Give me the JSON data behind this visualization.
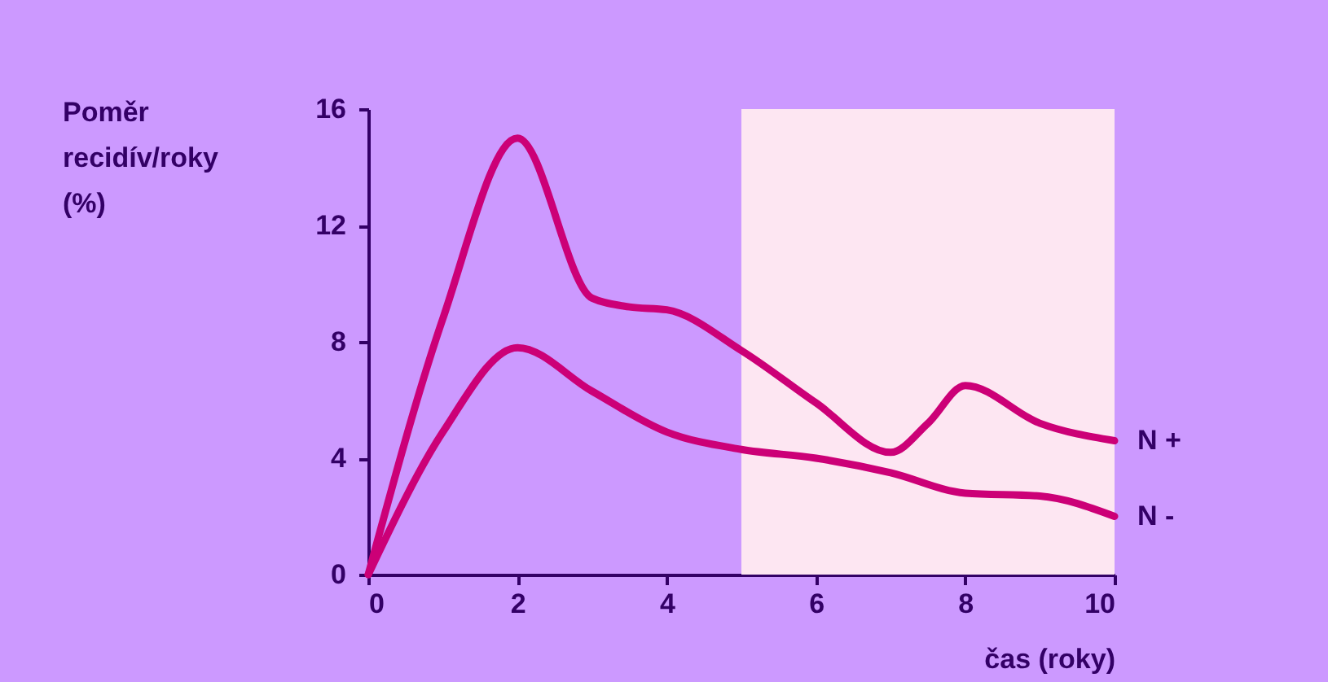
{
  "chart_data": {
    "type": "line",
    "xlabel": "čas (roky)",
    "ylabel": "Poměr\nrecidív/roky\n(%)",
    "xlim": [
      0,
      10
    ],
    "xticks": [
      0,
      2,
      4,
      6,
      8,
      10
    ],
    "ylim": [
      0,
      16
    ],
    "yticks": [
      0,
      4,
      8,
      12,
      16
    ],
    "grid": false,
    "legend": false,
    "marker": "none",
    "line_style": "solid",
    "series": [
      {
        "name": "N +",
        "color": "#cc0077",
        "x": [
          0,
          1,
          2,
          3,
          3.5,
          4,
          5,
          6,
          7,
          7.5,
          8,
          9,
          10
        ],
        "values": [
          0,
          8.8,
          15.0,
          9.5,
          9.2,
          9.1,
          7.7,
          5.9,
          4.2,
          5.2,
          6.5,
          5.2,
          4.6
        ]
      },
      {
        "name": "N -",
        "color": "#cc0077",
        "x": [
          0,
          1,
          2,
          3,
          4,
          5,
          6,
          7,
          8,
          9,
          10
        ],
        "values": [
          0,
          4.9,
          7.8,
          6.3,
          4.9,
          4.3,
          4.0,
          3.5,
          2.8,
          2.7,
          2.0
        ]
      }
    ],
    "bands": [
      {
        "axis": "x",
        "from": 5,
        "to": 10,
        "color": "#fde6f2"
      }
    ]
  }
}
